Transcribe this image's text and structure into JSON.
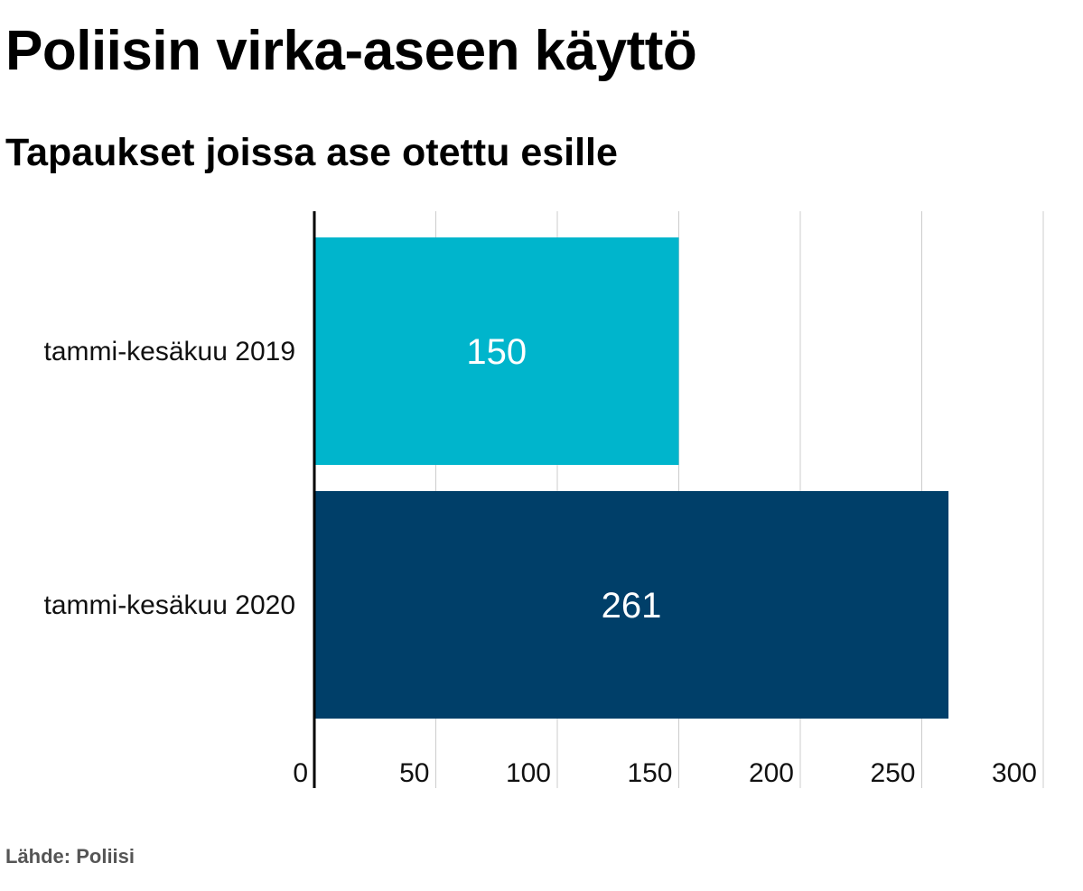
{
  "title": "Poliisin virka-aseen käyttö",
  "subtitle": "Tapaukset joissa ase otettu esille",
  "source": "Lähde: Poliisi",
  "chart_data": {
    "type": "bar",
    "orientation": "horizontal",
    "categories": [
      "tammi-kesäkuu 2019",
      "tammi-kesäkuu 2020"
    ],
    "values": [
      150,
      261
    ],
    "data_labels": [
      "150",
      "261"
    ],
    "bar_colors": [
      "#00b5cc",
      "#003f69"
    ],
    "xlim": [
      0,
      300
    ],
    "xticks": [
      0,
      50,
      100,
      150,
      200,
      250,
      300
    ],
    "xtick_labels": [
      "0",
      "50",
      "100",
      "150",
      "200",
      "250",
      "300"
    ],
    "xlabel": "",
    "ylabel": "",
    "grid": true,
    "legend": "none"
  }
}
